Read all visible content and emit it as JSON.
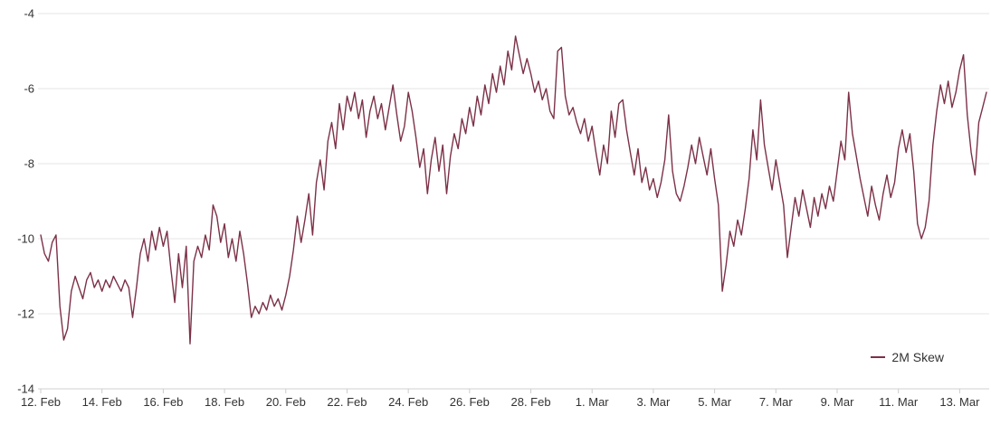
{
  "chart_data": {
    "type": "line",
    "title": "",
    "xlabel": "",
    "ylabel": "",
    "ylim": [
      -14,
      -4
    ],
    "yticks": [
      -4,
      -6,
      -8,
      -10,
      -12,
      -14
    ],
    "ytick_labels": [
      "-4",
      "-6",
      "-8",
      "-10",
      "-12",
      "-14"
    ],
    "x_tick_labels": [
      "12. Feb",
      "14. Feb",
      "16. Feb",
      "18. Feb",
      "20. Feb",
      "22. Feb",
      "24. Feb",
      "26. Feb",
      "28. Feb",
      "1. Mar",
      "3. Mar",
      "5. Mar",
      "7. Mar",
      "9. Mar",
      "11. Mar",
      "13. Mar"
    ],
    "x_tick_days": [
      0,
      2,
      4,
      6,
      8,
      10,
      12,
      14,
      16,
      18,
      20,
      22,
      24,
      26,
      28,
      30
    ],
    "points_per_day": 8,
    "grid": "horizontal",
    "legend_position": "bottom-right",
    "style": {
      "grid_color": "#e6e6e6",
      "axis_color": "#d0d0d0",
      "tick_color": "#cccccc",
      "text_color": "#333333"
    },
    "series": [
      {
        "name": "2M Skew",
        "color": "#7c3147",
        "values": [
          -9.9,
          -10.4,
          -10.6,
          -10.1,
          -9.9,
          -11.8,
          -12.7,
          -12.4,
          -11.4,
          -11.0,
          -11.3,
          -11.6,
          -11.1,
          -10.9,
          -11.3,
          -11.1,
          -11.4,
          -11.1,
          -11.3,
          -11.0,
          -11.2,
          -11.4,
          -11.1,
          -11.3,
          -12.1,
          -11.3,
          -10.4,
          -10.0,
          -10.6,
          -9.8,
          -10.3,
          -9.7,
          -10.2,
          -9.8,
          -10.8,
          -11.7,
          -10.4,
          -11.3,
          -10.2,
          -12.8,
          -10.6,
          -10.2,
          -10.5,
          -9.9,
          -10.3,
          -9.1,
          -9.4,
          -10.1,
          -9.6,
          -10.5,
          -10.0,
          -10.6,
          -9.8,
          -10.4,
          -11.2,
          -12.1,
          -11.8,
          -12.0,
          -11.7,
          -11.9,
          -11.5,
          -11.8,
          -11.6,
          -11.9,
          -11.5,
          -11.0,
          -10.3,
          -9.4,
          -10.1,
          -9.5,
          -8.8,
          -9.9,
          -8.5,
          -7.9,
          -8.7,
          -7.4,
          -6.9,
          -7.6,
          -6.4,
          -7.1,
          -6.2,
          -6.6,
          -6.1,
          -6.8,
          -6.3,
          -7.3,
          -6.6,
          -6.2,
          -6.8,
          -6.4,
          -7.1,
          -6.5,
          -5.9,
          -6.7,
          -7.4,
          -7.0,
          -6.1,
          -6.6,
          -7.3,
          -8.1,
          -7.6,
          -8.8,
          -7.9,
          -7.3,
          -8.2,
          -7.5,
          -8.8,
          -7.8,
          -7.2,
          -7.6,
          -6.8,
          -7.2,
          -6.5,
          -7.0,
          -6.2,
          -6.7,
          -5.9,
          -6.4,
          -5.6,
          -6.1,
          -5.4,
          -5.9,
          -5.0,
          -5.5,
          -4.6,
          -5.1,
          -5.6,
          -5.2,
          -5.6,
          -6.1,
          -5.8,
          -6.3,
          -6.0,
          -6.6,
          -6.8,
          -5.0,
          -4.9,
          -6.2,
          -6.7,
          -6.5,
          -6.9,
          -7.2,
          -6.8,
          -7.4,
          -7.0,
          -7.7,
          -8.3,
          -7.5,
          -8.0,
          -6.6,
          -7.3,
          -6.4,
          -6.3,
          -7.1,
          -7.7,
          -8.3,
          -7.6,
          -8.5,
          -8.1,
          -8.7,
          -8.4,
          -8.9,
          -8.5,
          -7.9,
          -6.7,
          -8.2,
          -8.8,
          -9.0,
          -8.6,
          -8.1,
          -7.5,
          -8.0,
          -7.3,
          -7.8,
          -8.3,
          -7.6,
          -8.4,
          -9.1,
          -11.4,
          -10.7,
          -9.8,
          -10.2,
          -9.5,
          -9.9,
          -9.2,
          -8.4,
          -7.1,
          -7.9,
          -6.3,
          -7.5,
          -8.1,
          -8.7,
          -7.9,
          -8.5,
          -9.1,
          -10.5,
          -9.7,
          -8.9,
          -9.4,
          -8.7,
          -9.2,
          -9.7,
          -8.9,
          -9.4,
          -8.8,
          -9.2,
          -8.6,
          -9.0,
          -8.2,
          -7.4,
          -7.9,
          -6.1,
          -7.2,
          -7.8,
          -8.4,
          -8.9,
          -9.4,
          -8.6,
          -9.1,
          -9.5,
          -8.8,
          -8.3,
          -8.9,
          -8.5,
          -7.6,
          -7.1,
          -7.7,
          -7.2,
          -8.2,
          -9.6,
          -10.0,
          -9.7,
          -9.0,
          -7.5,
          -6.6,
          -5.9,
          -6.4,
          -5.8,
          -6.5,
          -6.1,
          -5.5,
          -5.1,
          -6.7,
          -7.7,
          -8.3,
          -6.9,
          -6.5,
          -6.1
        ]
      }
    ]
  }
}
